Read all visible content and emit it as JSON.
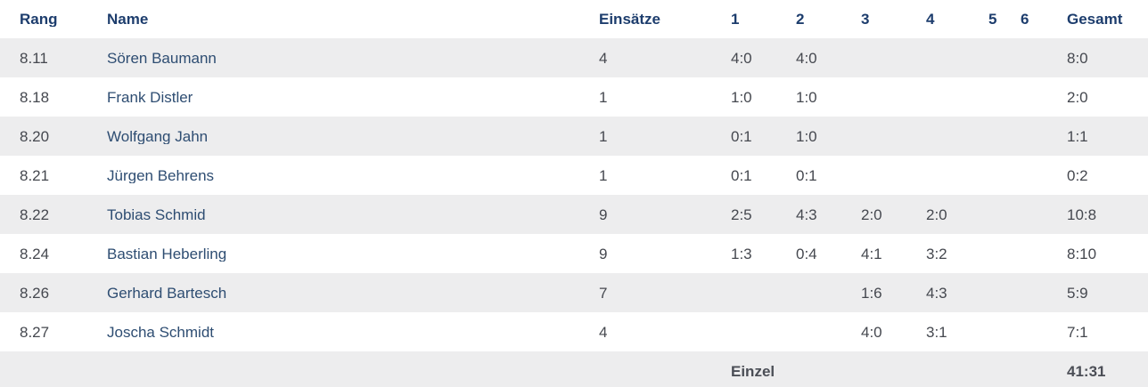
{
  "colors": {
    "header-text": "#1d3d6d",
    "name-text": "#2e4d72",
    "value-text": "#45484f",
    "footer-text": "#4b4e56",
    "stripe-bg": "#ededee",
    "row-bg": "#ffffff"
  },
  "table": {
    "columns": [
      {
        "label": "Rang"
      },
      {
        "label": "Name"
      },
      {
        "label": "Einsätze"
      },
      {
        "label": "1"
      },
      {
        "label": "2"
      },
      {
        "label": "3"
      },
      {
        "label": "4"
      },
      {
        "label": "5"
      },
      {
        "label": "6"
      },
      {
        "label": "Gesamt"
      }
    ],
    "rows": [
      {
        "rang": "8.11",
        "name": "Sören Baumann",
        "einsaetze": "4",
        "r1": "4:0",
        "r2": "4:0",
        "r3": "",
        "r4": "",
        "r5": "",
        "r6": "",
        "gesamt": "8:0"
      },
      {
        "rang": "8.18",
        "name": "Frank Distler",
        "einsaetze": "1",
        "r1": "1:0",
        "r2": "1:0",
        "r3": "",
        "r4": "",
        "r5": "",
        "r6": "",
        "gesamt": "2:0"
      },
      {
        "rang": "8.20",
        "name": "Wolfgang Jahn",
        "einsaetze": "1",
        "r1": "0:1",
        "r2": "1:0",
        "r3": "",
        "r4": "",
        "r5": "",
        "r6": "",
        "gesamt": "1:1"
      },
      {
        "rang": "8.21",
        "name": "Jürgen Behrens",
        "einsaetze": "1",
        "r1": "0:1",
        "r2": "0:1",
        "r3": "",
        "r4": "",
        "r5": "",
        "r6": "",
        "gesamt": "0:2"
      },
      {
        "rang": "8.22",
        "name": "Tobias Schmid",
        "einsaetze": "9",
        "r1": "2:5",
        "r2": "4:3",
        "r3": "2:0",
        "r4": "2:0",
        "r5": "",
        "r6": "",
        "gesamt": "10:8"
      },
      {
        "rang": "8.24",
        "name": "Bastian Heberling",
        "einsaetze": "9",
        "r1": "1:3",
        "r2": "0:4",
        "r3": "4:1",
        "r4": "3:2",
        "r5": "",
        "r6": "",
        "gesamt": "8:10"
      },
      {
        "rang": "8.26",
        "name": "Gerhard Bartesch",
        "einsaetze": "7",
        "r1": "",
        "r2": "",
        "r3": "1:6",
        "r4": "4:3",
        "r5": "",
        "r6": "",
        "gesamt": "5:9"
      },
      {
        "rang": "8.27",
        "name": "Joscha Schmidt",
        "einsaetze": "4",
        "r1": "",
        "r2": "",
        "r3": "4:0",
        "r4": "3:1",
        "r5": "",
        "r6": "",
        "gesamt": "7:1"
      }
    ],
    "footer": {
      "label": "Einzel",
      "total": "41:31"
    }
  }
}
